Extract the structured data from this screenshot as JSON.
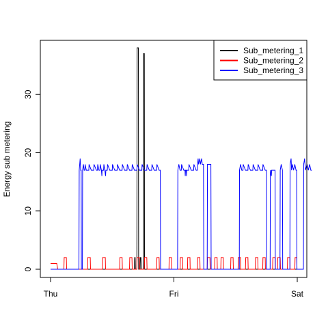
{
  "chart_data": {
    "type": "line",
    "title": "",
    "xlabel": "",
    "ylabel": "Energy sub metering",
    "x_ticks": [
      "Thu",
      "Fri",
      "Sat"
    ],
    "x_range_days": [
      0,
      2
    ],
    "ylim": [
      0,
      38
    ],
    "y_ticks": [
      0,
      10,
      20,
      30
    ],
    "grid": false,
    "legend_position": "top-right",
    "series": [
      {
        "name": "Sub_metering_1",
        "color": "#000000",
        "points": [
          [
            0.0,
            0
          ],
          [
            0.68,
            0
          ],
          [
            0.682,
            2
          ],
          [
            0.686,
            2
          ],
          [
            0.688,
            0
          ],
          [
            0.7,
            0
          ],
          [
            0.702,
            38
          ],
          [
            0.712,
            38
          ],
          [
            0.714,
            0
          ],
          [
            0.726,
            0
          ],
          [
            0.728,
            2
          ],
          [
            0.733,
            2
          ],
          [
            0.735,
            0
          ],
          [
            0.752,
            0
          ],
          [
            0.754,
            37
          ],
          [
            0.76,
            37
          ],
          [
            0.762,
            0
          ],
          [
            2.0,
            0
          ]
        ]
      },
      {
        "name": "Sub_metering_2",
        "color": "#ff0000",
        "points": [
          [
            0.0,
            1
          ],
          [
            0.05,
            1
          ],
          [
            0.058,
            0
          ],
          [
            0.108,
            0
          ],
          [
            0.11,
            2
          ],
          [
            0.128,
            2
          ],
          [
            0.13,
            0
          ],
          [
            0.3,
            0
          ],
          [
            0.302,
            2
          ],
          [
            0.322,
            2
          ],
          [
            0.324,
            0
          ],
          [
            0.42,
            0
          ],
          [
            0.422,
            2
          ],
          [
            0.444,
            2
          ],
          [
            0.446,
            0
          ],
          [
            0.56,
            0
          ],
          [
            0.562,
            2
          ],
          [
            0.58,
            2
          ],
          [
            0.582,
            0
          ],
          [
            0.64,
            0
          ],
          [
            0.642,
            2
          ],
          [
            0.66,
            2
          ],
          [
            0.662,
            0
          ],
          [
            0.7,
            0
          ],
          [
            0.702,
            2
          ],
          [
            0.72,
            2
          ],
          [
            0.722,
            0
          ],
          [
            0.76,
            0
          ],
          [
            0.762,
            2
          ],
          [
            0.78,
            2
          ],
          [
            0.782,
            0
          ],
          [
            0.86,
            0
          ],
          [
            0.862,
            2
          ],
          [
            0.88,
            2
          ],
          [
            0.882,
            0
          ],
          [
            0.96,
            0
          ],
          [
            0.962,
            2
          ],
          [
            0.98,
            2
          ],
          [
            0.982,
            0
          ],
          [
            1.05,
            0
          ],
          [
            1.052,
            2
          ],
          [
            1.07,
            2
          ],
          [
            1.072,
            0
          ],
          [
            1.11,
            0
          ],
          [
            1.112,
            2
          ],
          [
            1.13,
            2
          ],
          [
            1.132,
            0
          ],
          [
            1.19,
            0
          ],
          [
            1.192,
            2
          ],
          [
            1.21,
            2
          ],
          [
            1.212,
            0
          ],
          [
            1.27,
            0
          ],
          [
            1.272,
            2
          ],
          [
            1.292,
            2
          ],
          [
            1.294,
            0
          ],
          [
            1.33,
            0
          ],
          [
            1.332,
            2
          ],
          [
            1.35,
            2
          ],
          [
            1.352,
            0
          ],
          [
            1.38,
            0
          ],
          [
            1.382,
            2
          ],
          [
            1.4,
            2
          ],
          [
            1.402,
            0
          ],
          [
            1.46,
            0
          ],
          [
            1.462,
            2
          ],
          [
            1.48,
            2
          ],
          [
            1.482,
            0
          ],
          [
            1.52,
            0
          ],
          [
            1.522,
            2
          ],
          [
            1.54,
            2
          ],
          [
            1.542,
            0
          ],
          [
            1.58,
            0
          ],
          [
            1.582,
            2
          ],
          [
            1.6,
            2
          ],
          [
            1.602,
            0
          ],
          [
            1.66,
            0
          ],
          [
            1.662,
            2
          ],
          [
            1.68,
            2
          ],
          [
            1.682,
            0
          ],
          [
            1.72,
            0
          ],
          [
            1.722,
            2
          ],
          [
            1.74,
            2
          ],
          [
            1.742,
            0
          ],
          [
            1.8,
            0
          ],
          [
            1.802,
            2
          ],
          [
            1.82,
            2
          ],
          [
            1.822,
            0
          ],
          [
            1.84,
            0
          ],
          [
            1.842,
            2
          ],
          [
            1.862,
            2
          ],
          [
            1.864,
            0
          ],
          [
            1.92,
            0
          ],
          [
            1.922,
            2
          ],
          [
            1.94,
            2
          ],
          [
            1.942,
            0
          ],
          [
            1.98,
            0
          ],
          [
            1.982,
            2
          ],
          [
            1.996,
            2
          ],
          [
            1.998,
            0
          ],
          [
            2.0,
            0
          ]
        ]
      },
      {
        "name": "Sub_metering_3",
        "color": "#0000ff",
        "points": [
          [
            0.0,
            0
          ],
          [
            0.23,
            0
          ],
          [
            0.232,
            17
          ],
          [
            0.24,
            19
          ],
          [
            0.244,
            17
          ],
          [
            0.248,
            17
          ],
          [
            0.25,
            0
          ],
          [
            0.258,
            0
          ],
          [
            0.26,
            17
          ],
          [
            0.266,
            18
          ],
          [
            0.272,
            17
          ],
          [
            0.278,
            17
          ],
          [
            0.28,
            18
          ],
          [
            0.29,
            17
          ],
          [
            0.31,
            17
          ],
          [
            0.312,
            18
          ],
          [
            0.33,
            17
          ],
          [
            0.35,
            17
          ],
          [
            0.352,
            18
          ],
          [
            0.372,
            17
          ],
          [
            0.38,
            17
          ],
          [
            0.382,
            18
          ],
          [
            0.392,
            17
          ],
          [
            0.4,
            17
          ],
          [
            0.402,
            18
          ],
          [
            0.412,
            17
          ],
          [
            0.416,
            16
          ],
          [
            0.418,
            17
          ],
          [
            0.43,
            17
          ],
          [
            0.432,
            18
          ],
          [
            0.44,
            17
          ],
          [
            0.446,
            16
          ],
          [
            0.448,
            17
          ],
          [
            0.46,
            17
          ],
          [
            0.462,
            18
          ],
          [
            0.48,
            17
          ],
          [
            0.5,
            17
          ],
          [
            0.502,
            18
          ],
          [
            0.52,
            17
          ],
          [
            0.54,
            17
          ],
          [
            0.542,
            18
          ],
          [
            0.56,
            17
          ],
          [
            0.58,
            17
          ],
          [
            0.582,
            18
          ],
          [
            0.6,
            17
          ],
          [
            0.62,
            17
          ],
          [
            0.622,
            18
          ],
          [
            0.64,
            17
          ],
          [
            0.66,
            17
          ],
          [
            0.662,
            18
          ],
          [
            0.68,
            17
          ],
          [
            0.7,
            17
          ],
          [
            0.702,
            18
          ],
          [
            0.72,
            17
          ],
          [
            0.74,
            17
          ],
          [
            0.742,
            18
          ],
          [
            0.76,
            17
          ],
          [
            0.78,
            17
          ],
          [
            0.782,
            18
          ],
          [
            0.8,
            17
          ],
          [
            0.82,
            17
          ],
          [
            0.822,
            18
          ],
          [
            0.84,
            17
          ],
          [
            0.86,
            17
          ],
          [
            0.862,
            18
          ],
          [
            0.88,
            17
          ],
          [
            0.89,
            17
          ],
          [
            0.892,
            0
          ],
          [
            1.03,
            0
          ],
          [
            1.032,
            17
          ],
          [
            1.04,
            18
          ],
          [
            1.05,
            17
          ],
          [
            1.06,
            17
          ],
          [
            1.062,
            18
          ],
          [
            1.08,
            17
          ],
          [
            1.09,
            17
          ],
          [
            1.092,
            16
          ],
          [
            1.094,
            17
          ],
          [
            1.1,
            17
          ],
          [
            1.102,
            16
          ],
          [
            1.104,
            17
          ],
          [
            1.12,
            17
          ],
          [
            1.122,
            18
          ],
          [
            1.14,
            17
          ],
          [
            1.16,
            17
          ],
          [
            1.162,
            18
          ],
          [
            1.18,
            17
          ],
          [
            1.19,
            17
          ],
          [
            1.192,
            18
          ],
          [
            1.196,
            19
          ],
          [
            1.2,
            18
          ],
          [
            1.21,
            19
          ],
          [
            1.215,
            18
          ],
          [
            1.225,
            19
          ],
          [
            1.23,
            18
          ],
          [
            1.24,
            18
          ],
          [
            1.242,
            0
          ],
          [
            1.27,
            0
          ],
          [
            1.272,
            18
          ],
          [
            1.3,
            18
          ],
          [
            1.302,
            0
          ],
          [
            1.53,
            0
          ],
          [
            1.532,
            17
          ],
          [
            1.54,
            18
          ],
          [
            1.55,
            17
          ],
          [
            1.56,
            17
          ],
          [
            1.562,
            18
          ],
          [
            1.58,
            17
          ],
          [
            1.6,
            17
          ],
          [
            1.602,
            18
          ],
          [
            1.62,
            17
          ],
          [
            1.64,
            17
          ],
          [
            1.642,
            18
          ],
          [
            1.66,
            17
          ],
          [
            1.68,
            17
          ],
          [
            1.682,
            18
          ],
          [
            1.7,
            17
          ],
          [
            1.72,
            17
          ],
          [
            1.722,
            18
          ],
          [
            1.74,
            17
          ],
          [
            1.75,
            17
          ],
          [
            1.752,
            0
          ],
          [
            1.78,
            0
          ],
          [
            1.782,
            17
          ],
          [
            1.79,
            16
          ],
          [
            1.792,
            17
          ],
          [
            1.82,
            17
          ],
          [
            1.822,
            0
          ],
          [
            1.86,
            0
          ],
          [
            1.862,
            17
          ],
          [
            1.87,
            18
          ],
          [
            1.88,
            17
          ],
          [
            1.882,
            0
          ],
          [
            1.94,
            0
          ],
          [
            1.942,
            18
          ],
          [
            1.95,
            19
          ],
          [
            1.954,
            17
          ],
          [
            1.96,
            18
          ],
          [
            1.97,
            17
          ],
          [
            1.98,
            18
          ],
          [
            1.99,
            17
          ],
          [
            1.995,
            17
          ],
          [
            1.997,
            0
          ],
          [
            2.05,
            0
          ],
          [
            2.052,
            18
          ],
          [
            2.06,
            19
          ],
          [
            2.066,
            17
          ],
          [
            2.08,
            18
          ],
          [
            2.09,
            17
          ],
          [
            2.1,
            18
          ],
          [
            2.11,
            17
          ],
          [
            2.118,
            17
          ]
        ]
      }
    ]
  }
}
